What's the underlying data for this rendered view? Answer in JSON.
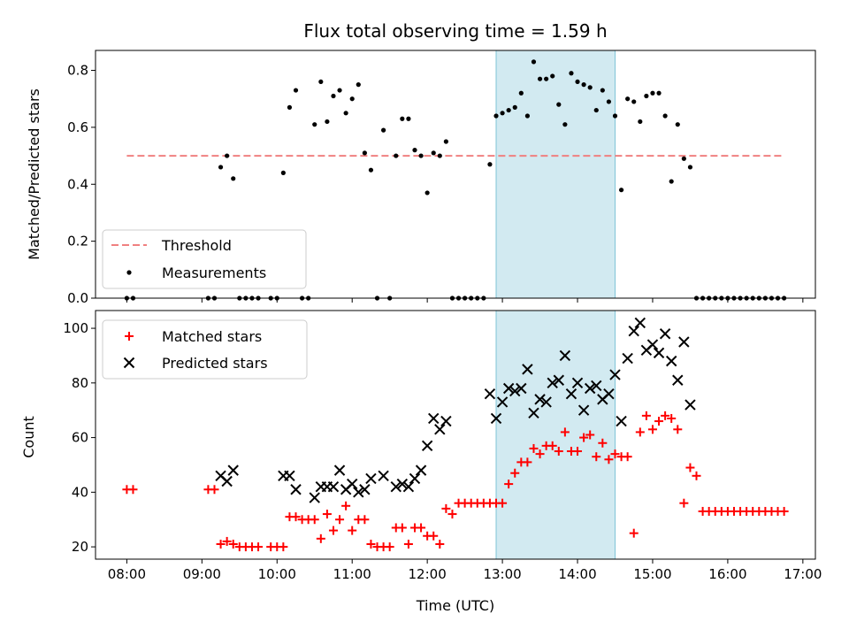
{
  "chart_data": {
    "title": "Flux total observing time = 1.59 h",
    "xlabel": "Time (UTC)",
    "x_ticks": [
      "08:00",
      "09:00",
      "10:00",
      "11:00",
      "12:00",
      "13:00",
      "14:00",
      "15:00",
      "16:00",
      "17:00"
    ],
    "highlight_span": {
      "start": "12:55",
      "end": "14:30",
      "color": "#add8e6"
    },
    "top": {
      "type": "scatter",
      "ylabel": "Matched/Predicted stars",
      "ylim": [
        0,
        0.87
      ],
      "yticks": [
        0.0,
        0.2,
        0.4,
        0.6,
        0.8
      ],
      "threshold": {
        "label": "Threshold",
        "value": 0.5,
        "x_range": [
          "08:00",
          "16:45"
        ],
        "color": "#f08080"
      },
      "measurements_label": "Measurements",
      "measurements": [
        [
          "08:00",
          0
        ],
        [
          "08:05",
          0
        ],
        [
          "09:05",
          0
        ],
        [
          "09:10",
          0
        ],
        [
          "09:15",
          0.46
        ],
        [
          "09:20",
          0.5
        ],
        [
          "09:25",
          0.42
        ],
        [
          "09:30",
          0
        ],
        [
          "09:35",
          0
        ],
        [
          "09:40",
          0
        ],
        [
          "09:45",
          0
        ],
        [
          "09:55",
          0
        ],
        [
          "10:00",
          0
        ],
        [
          "10:05",
          0.44
        ],
        [
          "10:10",
          0.67
        ],
        [
          "10:15",
          0.73
        ],
        [
          "10:20",
          0
        ],
        [
          "10:25",
          0
        ],
        [
          "10:30",
          0.61
        ],
        [
          "10:35",
          0.76
        ],
        [
          "10:40",
          0.62
        ],
        [
          "10:45",
          0.71
        ],
        [
          "10:50",
          0.73
        ],
        [
          "10:55",
          0.65
        ],
        [
          "11:00",
          0.7
        ],
        [
          "11:05",
          0.75
        ],
        [
          "11:10",
          0.51
        ],
        [
          "11:15",
          0.45
        ],
        [
          "11:20",
          0
        ],
        [
          "11:25",
          0.59
        ],
        [
          "11:30",
          0
        ],
        [
          "11:35",
          0.5
        ],
        [
          "11:40",
          0.63
        ],
        [
          "11:45",
          0.63
        ],
        [
          "11:50",
          0.52
        ],
        [
          "11:55",
          0.5
        ],
        [
          "12:00",
          0.37
        ],
        [
          "12:05",
          0.51
        ],
        [
          "12:10",
          0.5
        ],
        [
          "12:15",
          0.55
        ],
        [
          "12:20",
          0
        ],
        [
          "12:25",
          0
        ],
        [
          "12:30",
          0
        ],
        [
          "12:35",
          0
        ],
        [
          "12:40",
          0
        ],
        [
          "12:45",
          0
        ],
        [
          "12:50",
          0.47
        ],
        [
          "12:55",
          0.64
        ],
        [
          "13:00",
          0.65
        ],
        [
          "13:05",
          0.66
        ],
        [
          "13:10",
          0.67
        ],
        [
          "13:15",
          0.72
        ],
        [
          "13:20",
          0.64
        ],
        [
          "13:25",
          0.83
        ],
        [
          "13:30",
          0.77
        ],
        [
          "13:35",
          0.77
        ],
        [
          "13:40",
          0.78
        ],
        [
          "13:45",
          0.68
        ],
        [
          "13:50",
          0.61
        ],
        [
          "13:55",
          0.79
        ],
        [
          "14:00",
          0.76
        ],
        [
          "14:05",
          0.75
        ],
        [
          "14:10",
          0.74
        ],
        [
          "14:15",
          0.66
        ],
        [
          "14:20",
          0.73
        ],
        [
          "14:25",
          0.69
        ],
        [
          "14:30",
          0.64
        ],
        [
          "14:35",
          0.38
        ],
        [
          "14:40",
          0.7
        ],
        [
          "14:45",
          0.69
        ],
        [
          "14:50",
          0.62
        ],
        [
          "14:55",
          0.71
        ],
        [
          "15:00",
          0.72
        ],
        [
          "15:05",
          0.72
        ],
        [
          "15:10",
          0.64
        ],
        [
          "15:15",
          0.41
        ],
        [
          "15:20",
          0.61
        ],
        [
          "15:25",
          0.49
        ],
        [
          "15:30",
          0.46
        ],
        [
          "15:35",
          0
        ],
        [
          "15:40",
          0
        ],
        [
          "15:45",
          0
        ],
        [
          "15:50",
          0
        ],
        [
          "15:55",
          0
        ],
        [
          "16:00",
          0
        ],
        [
          "16:05",
          0
        ],
        [
          "16:10",
          0
        ],
        [
          "16:15",
          0
        ],
        [
          "16:20",
          0
        ],
        [
          "16:25",
          0
        ],
        [
          "16:30",
          0
        ],
        [
          "16:35",
          0
        ],
        [
          "16:40",
          0
        ],
        [
          "16:45",
          0
        ]
      ]
    },
    "bottom": {
      "type": "scatter",
      "ylabel": "Count",
      "ylim": [
        15.5,
        106.5
      ],
      "yticks": [
        20,
        40,
        60,
        80,
        100
      ],
      "matched_label": "Matched stars",
      "predicted_label": "Predicted stars",
      "matched_color": "#ff0000",
      "predicted_color": "#000000",
      "matched": [
        [
          "08:00",
          41
        ],
        [
          "08:05",
          41
        ],
        [
          "09:05",
          41
        ],
        [
          "09:10",
          41
        ],
        [
          "09:15",
          21
        ],
        [
          "09:20",
          22
        ],
        [
          "09:25",
          21
        ],
        [
          "09:30",
          20
        ],
        [
          "09:35",
          20
        ],
        [
          "09:40",
          20
        ],
        [
          "09:45",
          20
        ],
        [
          "09:55",
          20
        ],
        [
          "10:00",
          20
        ],
        [
          "10:05",
          20
        ],
        [
          "10:10",
          31
        ],
        [
          "10:15",
          31
        ],
        [
          "10:20",
          30
        ],
        [
          "10:25",
          30
        ],
        [
          "10:30",
          30
        ],
        [
          "10:35",
          23
        ],
        [
          "10:40",
          32
        ],
        [
          "10:45",
          26
        ],
        [
          "10:50",
          30
        ],
        [
          "10:55",
          35
        ],
        [
          "11:00",
          26
        ],
        [
          "11:05",
          30
        ],
        [
          "11:10",
          30
        ],
        [
          "11:15",
          21
        ],
        [
          "11:20",
          20
        ],
        [
          "11:25",
          20
        ],
        [
          "11:30",
          20
        ],
        [
          "11:35",
          27
        ],
        [
          "11:40",
          27
        ],
        [
          "11:45",
          21
        ],
        [
          "11:50",
          27
        ],
        [
          "11:55",
          27
        ],
        [
          "12:00",
          24
        ],
        [
          "12:05",
          24
        ],
        [
          "12:10",
          21
        ],
        [
          "12:15",
          34
        ],
        [
          "12:20",
          32
        ],
        [
          "12:25",
          36
        ],
        [
          "12:30",
          36
        ],
        [
          "12:35",
          36
        ],
        [
          "12:40",
          36
        ],
        [
          "12:45",
          36
        ],
        [
          "12:50",
          36
        ],
        [
          "12:55",
          36
        ],
        [
          "13:00",
          36
        ],
        [
          "13:05",
          43
        ],
        [
          "13:10",
          47
        ],
        [
          "13:15",
          51
        ],
        [
          "13:20",
          51
        ],
        [
          "13:25",
          56
        ],
        [
          "13:30",
          54
        ],
        [
          "13:35",
          57
        ],
        [
          "13:40",
          57
        ],
        [
          "13:45",
          55
        ],
        [
          "13:50",
          62
        ],
        [
          "13:55",
          55
        ],
        [
          "14:00",
          55
        ],
        [
          "14:05",
          60
        ],
        [
          "14:10",
          61
        ],
        [
          "14:15",
          53
        ],
        [
          "14:20",
          58
        ],
        [
          "14:25",
          52
        ],
        [
          "14:30",
          54
        ],
        [
          "14:35",
          53
        ],
        [
          "14:40",
          53
        ],
        [
          "14:45",
          25
        ],
        [
          "14:50",
          62
        ],
        [
          "14:55",
          68
        ],
        [
          "15:00",
          63
        ],
        [
          "15:05",
          66
        ],
        [
          "15:10",
          68
        ],
        [
          "15:15",
          67
        ],
        [
          "15:20",
          63
        ],
        [
          "15:25",
          36
        ],
        [
          "15:30",
          49
        ],
        [
          "15:35",
          46
        ],
        [
          "15:40",
          33
        ],
        [
          "15:45",
          33
        ],
        [
          "15:50",
          33
        ],
        [
          "15:55",
          33
        ],
        [
          "16:00",
          33
        ],
        [
          "16:05",
          33
        ],
        [
          "16:10",
          33
        ],
        [
          "16:15",
          33
        ],
        [
          "16:20",
          33
        ],
        [
          "16:25",
          33
        ],
        [
          "16:30",
          33
        ],
        [
          "16:35",
          33
        ],
        [
          "16:40",
          33
        ],
        [
          "16:45",
          33
        ]
      ],
      "predicted": [
        [
          "09:15",
          46
        ],
        [
          "09:20",
          44
        ],
        [
          "09:25",
          48
        ],
        [
          "10:05",
          46
        ],
        [
          "10:10",
          46
        ],
        [
          "10:15",
          41
        ],
        [
          "10:30",
          38
        ],
        [
          "10:35",
          42
        ],
        [
          "10:40",
          42
        ],
        [
          "10:45",
          42
        ],
        [
          "10:50",
          48
        ],
        [
          "10:55",
          41
        ],
        [
          "11:00",
          43
        ],
        [
          "11:05",
          40
        ],
        [
          "11:10",
          41
        ],
        [
          "11:15",
          45
        ],
        [
          "11:25",
          46
        ],
        [
          "11:35",
          42
        ],
        [
          "11:40",
          43
        ],
        [
          "11:45",
          42
        ],
        [
          "11:50",
          45
        ],
        [
          "11:55",
          48
        ],
        [
          "12:00",
          57
        ],
        [
          "12:05",
          67
        ],
        [
          "12:10",
          63
        ],
        [
          "12:15",
          66
        ],
        [
          "12:50",
          76
        ],
        [
          "12:55",
          67
        ],
        [
          "13:00",
          73
        ],
        [
          "13:05",
          78
        ],
        [
          "13:10",
          77
        ],
        [
          "13:15",
          78
        ],
        [
          "13:20",
          85
        ],
        [
          "13:25",
          69
        ],
        [
          "13:30",
          74
        ],
        [
          "13:35",
          73
        ],
        [
          "13:40",
          80
        ],
        [
          "13:45",
          81
        ],
        [
          "13:50",
          90
        ],
        [
          "13:55",
          76
        ],
        [
          "14:00",
          80
        ],
        [
          "14:05",
          70
        ],
        [
          "14:10",
          78
        ],
        [
          "14:15",
          79
        ],
        [
          "14:20",
          74
        ],
        [
          "14:25",
          76
        ],
        [
          "14:30",
          83
        ],
        [
          "14:35",
          66
        ],
        [
          "14:40",
          89
        ],
        [
          "14:45",
          99
        ],
        [
          "14:50",
          102
        ],
        [
          "14:55",
          92
        ],
        [
          "15:00",
          94
        ],
        [
          "15:05",
          91
        ],
        [
          "15:10",
          98
        ],
        [
          "15:15",
          88
        ],
        [
          "15:20",
          81
        ],
        [
          "15:25",
          95
        ],
        [
          "15:30",
          72
        ]
      ]
    }
  }
}
